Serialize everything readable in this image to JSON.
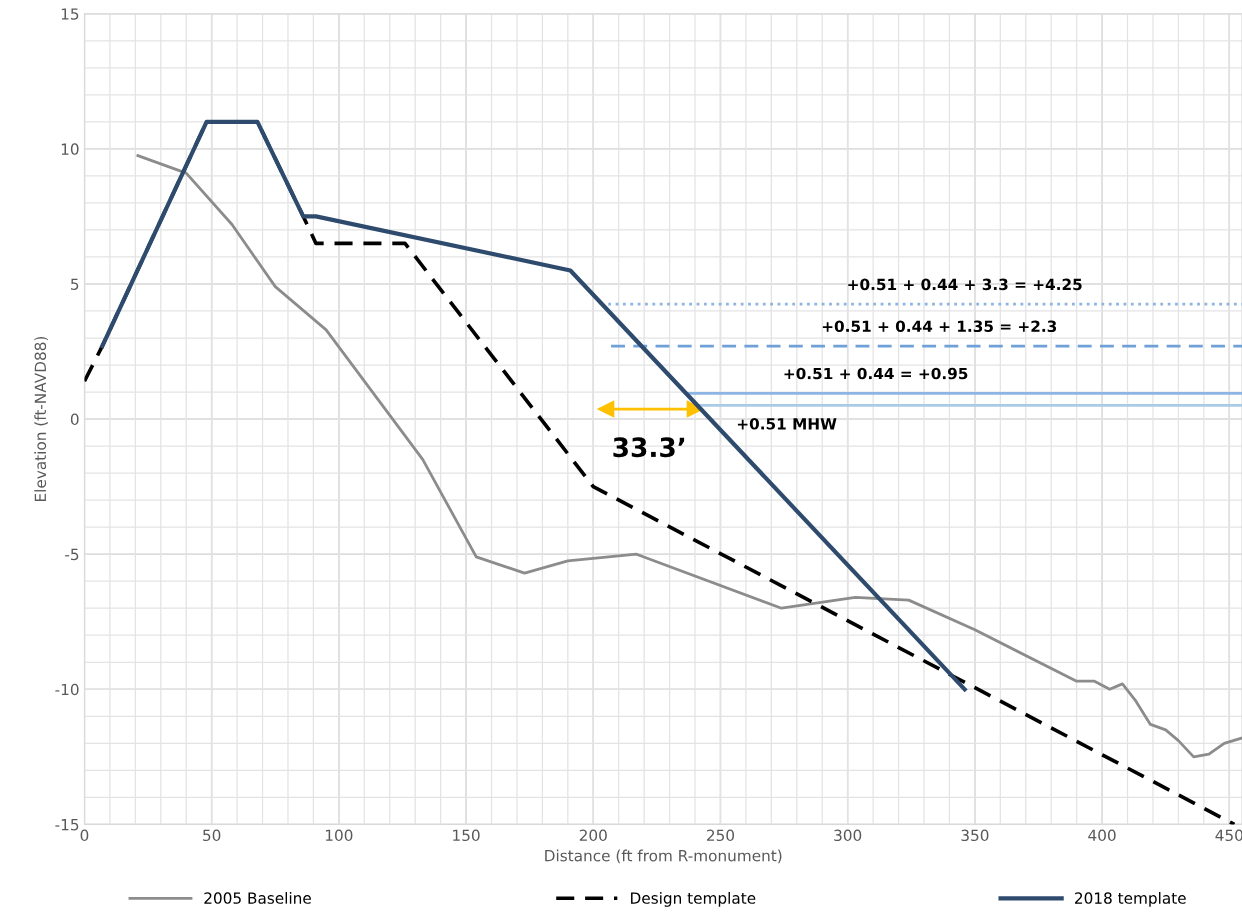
{
  "chart_data": {
    "type": "line",
    "xlabel": "Distance (ft from R-monument)",
    "ylabel": "Elevation (ft-NAVD88)",
    "xlim": [
      0,
      455
    ],
    "ylim": [
      -15,
      15
    ],
    "xticks": [
      0,
      {
        "value": 10,
        "label": null
      },
      {
        "value": 20,
        "label": null
      },
      {
        "value": 30,
        "label": null
      },
      {
        "value": 40,
        "label": null
      },
      50,
      {
        "value": 60,
        "label": null
      },
      {
        "value": 70,
        "label": null
      },
      {
        "value": 80,
        "label": null
      },
      {
        "value": 90,
        "label": null
      },
      100,
      {
        "value": 110,
        "label": null
      },
      {
        "value": 120,
        "label": null
      },
      {
        "value": 130,
        "label": null
      },
      {
        "value": 140,
        "label": null
      },
      150,
      {
        "value": 160,
        "label": null
      },
      {
        "value": 170,
        "label": null
      },
      {
        "value": 180,
        "label": null
      },
      {
        "value": 190,
        "label": null
      },
      200,
      {
        "value": 210,
        "label": null
      },
      {
        "value": 220,
        "label": null
      },
      {
        "value": 230,
        "label": null
      },
      {
        "value": 240,
        "label": null
      },
      250,
      {
        "value": 260,
        "label": null
      },
      {
        "value": 270,
        "label": null
      },
      {
        "value": 280,
        "label": null
      },
      {
        "value": 290,
        "label": null
      },
      300,
      {
        "value": 310,
        "label": null
      },
      {
        "value": 320,
        "label": null
      },
      {
        "value": 330,
        "label": null
      },
      {
        "value": 340,
        "label": null
      },
      350,
      {
        "value": 360,
        "label": null
      },
      {
        "value": 370,
        "label": null
      },
      {
        "value": 380,
        "label": null
      },
      {
        "value": 390,
        "label": null
      },
      400,
      {
        "value": 410,
        "label": null
      },
      {
        "value": 420,
        "label": null
      },
      {
        "value": 430,
        "label": null
      },
      {
        "value": 440,
        "label": null
      },
      450
    ],
    "yticks": [
      -15,
      {
        "value": -14,
        "label": null
      },
      {
        "value": -13,
        "label": null
      },
      {
        "value": -12,
        "label": null
      },
      {
        "value": -11,
        "label": null
      },
      -10,
      {
        "value": -9,
        "label": null
      },
      {
        "value": -8,
        "label": null
      },
      {
        "value": -7,
        "label": null
      },
      {
        "value": -6,
        "label": null
      },
      -5,
      {
        "value": -4,
        "label": null
      },
      {
        "value": -3,
        "label": null
      },
      {
        "value": -2,
        "label": null
      },
      {
        "value": -1,
        "label": null
      },
      0,
      {
        "value": 1,
        "label": null
      },
      {
        "value": 2,
        "label": null
      },
      {
        "value": 3,
        "label": null
      },
      {
        "value": 4,
        "label": null
      },
      5,
      {
        "value": 6,
        "label": null
      },
      {
        "value": 7,
        "label": null
      },
      {
        "value": 8,
        "label": null
      },
      {
        "value": 9,
        "label": null
      },
      10,
      {
        "value": 11,
        "label": null
      },
      {
        "value": 12,
        "label": null
      },
      {
        "value": 13,
        "label": null
      },
      {
        "value": 14,
        "label": null
      },
      15
    ],
    "grid": true,
    "legend": "bottom",
    "series": [
      {
        "name": "2005 Baseline",
        "color": "#8c8c8c",
        "line_style": "solid",
        "x": [
          21,
          40,
          58,
          75,
          95,
          133,
          154,
          173,
          190,
          217,
          274,
          303,
          324,
          350,
          390,
          397,
          403,
          408,
          413,
          419,
          425,
          430,
          436,
          442,
          448,
          455
        ],
        "values": [
          9.75,
          9.1,
          7.2,
          4.9,
          3.3,
          -1.5,
          -5.1,
          -5.7,
          -5.25,
          -5.0,
          -7.0,
          -6.6,
          -6.7,
          -7.8,
          -9.7,
          -9.7,
          -10.0,
          -9.8,
          -10.4,
          -11.3,
          -11.5,
          -11.9,
          -12.5,
          -12.4,
          -12.0,
          -11.8
        ]
      },
      {
        "name": "Design template",
        "color": "#000000",
        "line_style": "dashed",
        "x": [
          0,
          7,
          48,
          68,
          86,
          91,
          126,
          200,
          452
        ],
        "values": [
          1.4,
          2.7,
          11,
          11,
          7.5,
          6.5,
          6.5,
          -2.5,
          -15
        ]
      },
      {
        "name": "2018 template",
        "color": "#2e4b6e",
        "line_style": "solid",
        "x": [
          7,
          48,
          68,
          86,
          91,
          191,
          346
        ],
        "values": [
          2.7,
          11,
          11,
          7.5,
          7.5,
          5.5,
          -10
        ]
      },
      {
        "color": "#8db4e2",
        "line_style": "dotted",
        "x": [
          203,
          455
        ],
        "values": [
          4.25,
          4.25
        ]
      },
      {
        "color": "#6fa0d8",
        "line_style": "dashed",
        "x": [
          207,
          455
        ],
        "values": [
          2.7,
          2.7
        ]
      },
      {
        "color": "#8db4e2",
        "line_style": "solid",
        "x": [
          237,
          455
        ],
        "values": [
          0.95,
          0.95
        ]
      },
      {
        "color": "#a9cbe8",
        "line_style": "solid",
        "x": [
          238,
          455
        ],
        "values": [
          0.51,
          0.51
        ]
      },
      {
        "color": "#ffc000",
        "line_style": "solid",
        "marker": "triangle",
        "x": [
          205,
          240
        ],
        "values": [
          0.37,
          0.37
        ]
      }
    ],
    "annotations": [
      {
        "text": "+0.51 + 0.44 + 3.3 = +4.25",
        "x": 346,
        "y": 4.25
      },
      {
        "text": "+0.51 + 0.44 + 1.35 = +2.3",
        "x": 336,
        "y": 2.7
      },
      {
        "text": "+0.51 + 0.44 = +0.95",
        "x": 311,
        "y": 0.95
      },
      {
        "text": "+0.51 MHW",
        "x": 276,
        "y": 0.51
      },
      {
        "text": "33.3’",
        "x": 222,
        "y": 0.37
      }
    ]
  }
}
